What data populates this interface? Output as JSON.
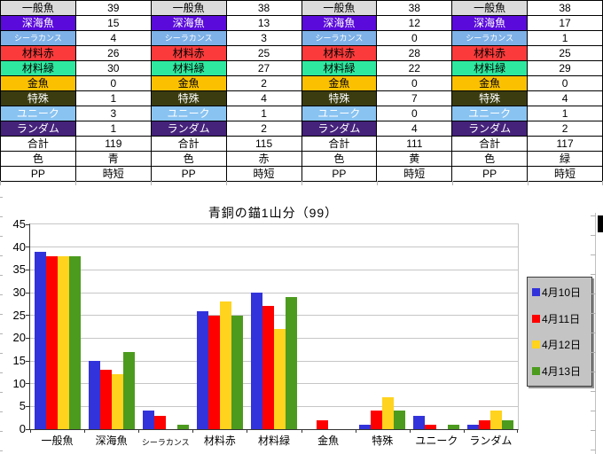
{
  "table": {
    "rows": [
      {
        "label": "一般魚",
        "bg": "#DBDBDB",
        "fg": "#000000",
        "small": false,
        "values": [
          "39",
          "38",
          "38",
          "38"
        ]
      },
      {
        "label": "深海魚",
        "bg": "#5A0BDB",
        "fg": "#FFFFFF",
        "small": false,
        "values": [
          "15",
          "13",
          "12",
          "17"
        ]
      },
      {
        "label": "シーラカンス",
        "bg": "#7DB1E8",
        "fg": "#FFFFFF",
        "small": true,
        "values": [
          "4",
          "3",
          "0",
          "1"
        ]
      },
      {
        "label": "材料赤",
        "bg": "#FB3B3B",
        "fg": "#000000",
        "small": false,
        "values": [
          "26",
          "25",
          "28",
          "25"
        ]
      },
      {
        "label": "材料緑",
        "bg": "#2FE89F",
        "fg": "#000000",
        "small": false,
        "values": [
          "30",
          "27",
          "22",
          "29"
        ]
      },
      {
        "label": "金魚",
        "bg": "#FBC101",
        "fg": "#000000",
        "small": false,
        "values": [
          "0",
          "2",
          "0",
          "0"
        ]
      },
      {
        "label": "特殊",
        "bg": "#3B3D11",
        "fg": "#FFFFFF",
        "small": false,
        "values": [
          "1",
          "4",
          "7",
          "4"
        ]
      },
      {
        "label": "ユニーク",
        "bg": "#89C3F1",
        "fg": "#FFFFFF",
        "small": false,
        "values": [
          "3",
          "1",
          "0",
          "1"
        ]
      },
      {
        "label": "ランダム",
        "bg": "#45237B",
        "fg": "#FFFFFF",
        "small": false,
        "values": [
          "1",
          "2",
          "4",
          "2"
        ]
      },
      {
        "label": "合計",
        "bg": "#FFFFFF",
        "fg": "#000000",
        "small": false,
        "values": [
          "119",
          "115",
          "111",
          "117"
        ]
      },
      {
        "label": "色",
        "bg": "#FFFFFF",
        "fg": "#000000",
        "small": false,
        "values": [
          "青",
          "赤",
          "黄",
          "緑"
        ]
      },
      {
        "label": "PP",
        "bg": "#FFFFFF",
        "fg": "#000000",
        "small": false,
        "values": [
          "時短",
          "時短",
          "時短",
          "時短"
        ]
      }
    ]
  },
  "chart_data": {
    "type": "bar",
    "title": "青銅の錨1山分（99）",
    "categories": [
      "一般魚",
      "深海魚",
      "シーラカンス",
      "材料赤",
      "材料緑",
      "金魚",
      "特殊",
      "ユニーク",
      "ランダム"
    ],
    "series": [
      {
        "name": "4月10日",
        "color": "#3333DB",
        "values": [
          39,
          15,
          4,
          26,
          30,
          0,
          1,
          3,
          1
        ]
      },
      {
        "name": "4月11日",
        "color": "#FF0000",
        "values": [
          38,
          13,
          3,
          25,
          27,
          2,
          4,
          1,
          2
        ]
      },
      {
        "name": "4月12日",
        "color": "#FFD31E",
        "values": [
          38,
          12,
          0,
          28,
          22,
          0,
          7,
          0,
          4
        ]
      },
      {
        "name": "4月13日",
        "color": "#4C9B1E",
        "values": [
          38,
          17,
          1,
          25,
          29,
          0,
          4,
          1,
          2
        ]
      }
    ],
    "xlabel": "",
    "ylabel": "",
    "ylim": [
      0,
      45
    ],
    "ytick_step": 5,
    "grid": true,
    "legend_position": "right",
    "colors": {
      "axis": "#333333",
      "gridline": "#C6C6C6",
      "legend_bg": "#C4C4C4"
    }
  }
}
